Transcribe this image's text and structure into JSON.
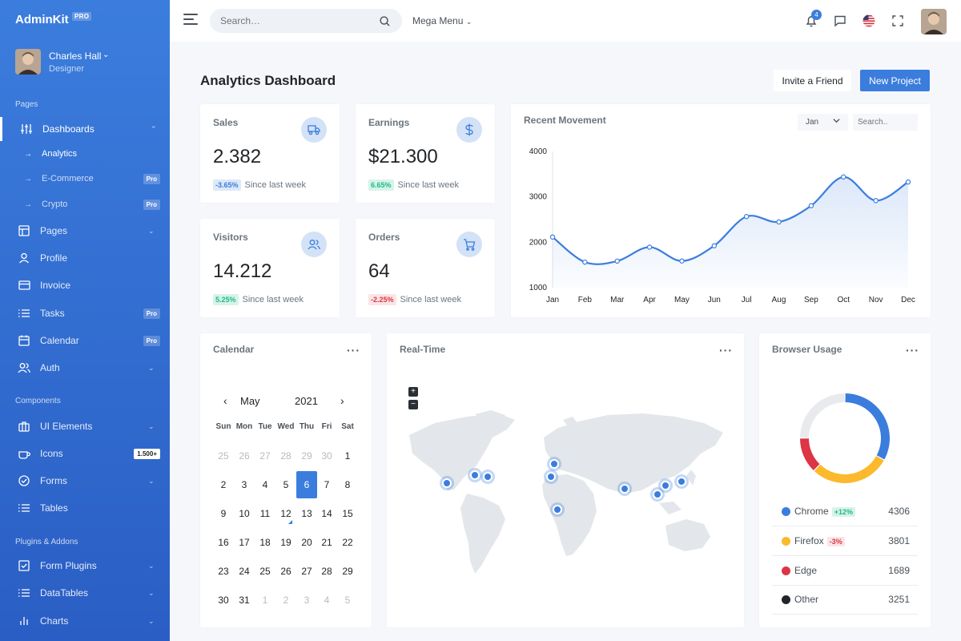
{
  "brand": {
    "name": "AdminKit",
    "badge": "PRO"
  },
  "user": {
    "name": "Charles Hall",
    "role": "Designer"
  },
  "sidebar": {
    "sections": [
      "Pages",
      "Components",
      "Plugins & Addons"
    ],
    "items": [
      {
        "label": "Dashboards",
        "icon": "sliders-icon"
      },
      {
        "label": "Pages",
        "icon": "layout-icon"
      },
      {
        "label": "Profile",
        "icon": "user-icon"
      },
      {
        "label": "Invoice",
        "icon": "credit-card-icon"
      },
      {
        "label": "Tasks",
        "icon": "list-icon",
        "badge": "Pro"
      },
      {
        "label": "Calendar",
        "icon": "calendar-icon",
        "badge": "Pro"
      },
      {
        "label": "Auth",
        "icon": "users-icon"
      },
      {
        "label": "UI Elements",
        "icon": "briefcase-icon"
      },
      {
        "label": "Icons",
        "icon": "coffee-icon",
        "badge": "1.500+"
      },
      {
        "label": "Forms",
        "icon": "check-circle-icon"
      },
      {
        "label": "Tables",
        "icon": "list-icon"
      },
      {
        "label": "Form Plugins",
        "icon": "check-square-icon"
      },
      {
        "label": "DataTables",
        "icon": "list-icon"
      },
      {
        "label": "Charts",
        "icon": "bar-chart-icon"
      }
    ],
    "subitems": [
      {
        "label": "Analytics"
      },
      {
        "label": "E-Commerce",
        "badge": "Pro"
      },
      {
        "label": "Crypto",
        "badge": "Pro"
      }
    ]
  },
  "topbar": {
    "search_placeholder": "Search…",
    "mega_menu": "Mega Menu",
    "notifications": "4"
  },
  "page": {
    "title_bold": "Analytics",
    "title_rest": " Dashboard",
    "invite_label": "Invite a Friend",
    "new_project_label": "New Project"
  },
  "stats": [
    {
      "title": "Sales",
      "value": "2.382",
      "change": "-3.65%",
      "since": "Since last week",
      "icon": "truck-icon"
    },
    {
      "title": "Earnings",
      "value": "$21.300",
      "change": "6.65%",
      "since": "Since last week",
      "icon": "dollar-icon"
    },
    {
      "title": "Visitors",
      "value": "14.212",
      "change": "5.25%",
      "since": "Since last week",
      "icon": "users-icon"
    },
    {
      "title": "Orders",
      "value": "64",
      "change": "-2.25%",
      "since": "Since last week",
      "icon": "cart-icon"
    }
  ],
  "movement": {
    "title": "Recent Movement",
    "month_select": "Jan",
    "search_placeholder": "Search.."
  },
  "chart_data": {
    "type": "area",
    "categories": [
      "Jan",
      "Feb",
      "Mar",
      "Apr",
      "May",
      "Jun",
      "Jul",
      "Aug",
      "Sep",
      "Oct",
      "Nov",
      "Dec"
    ],
    "values": [
      2115,
      1562,
      1584,
      1892,
      1587,
      1923,
      2566,
      2448,
      2805,
      3438,
      2917,
      3327
    ],
    "yticks": [
      "4000",
      "3000",
      "2000",
      "1000"
    ],
    "ylim": [
      1000,
      4000
    ],
    "title": "Recent Movement",
    "xlabel": "",
    "ylabel": "",
    "color": "#3b7ddd"
  },
  "calendar": {
    "title": "Calendar",
    "month": "May",
    "year": "2021",
    "weekdays": [
      "Sun",
      "Mon",
      "Tue",
      "Wed",
      "Thu",
      "Fri",
      "Sat"
    ],
    "days": [
      [
        "25",
        "26",
        "27",
        "28",
        "29",
        "30",
        "1"
      ],
      [
        "2",
        "3",
        "4",
        "5",
        "6",
        "7",
        "8"
      ],
      [
        "9",
        "10",
        "11",
        "12",
        "13",
        "14",
        "15"
      ],
      [
        "16",
        "17",
        "18",
        "19",
        "20",
        "21",
        "22"
      ],
      [
        "23",
        "24",
        "25",
        "26",
        "27",
        "28",
        "29"
      ],
      [
        "30",
        "31",
        "1",
        "2",
        "3",
        "4",
        "5"
      ]
    ],
    "selected": "6"
  },
  "realtime": {
    "title": "Real-Time",
    "zoom_in": "+",
    "zoom_out": "−"
  },
  "browser": {
    "title": "Browser Usage",
    "items": [
      {
        "name": "Chrome",
        "change": "+12%",
        "value": "4306",
        "color": "#3b7ddd"
      },
      {
        "name": "Firefox",
        "change": "-3%",
        "value": "3801",
        "color": "#fcb92c"
      },
      {
        "name": "Edge",
        "change": "",
        "value": "1689",
        "color": "#dc3545"
      },
      {
        "name": "Other",
        "change": "",
        "value": "3251",
        "color": "#212529"
      }
    ],
    "donut_values": [
      4306,
      3801,
      1689,
      3251
    ],
    "donut_colors": [
      "#3b7ddd",
      "#fcb92c",
      "#dc3545",
      "#e8eaed"
    ]
  }
}
